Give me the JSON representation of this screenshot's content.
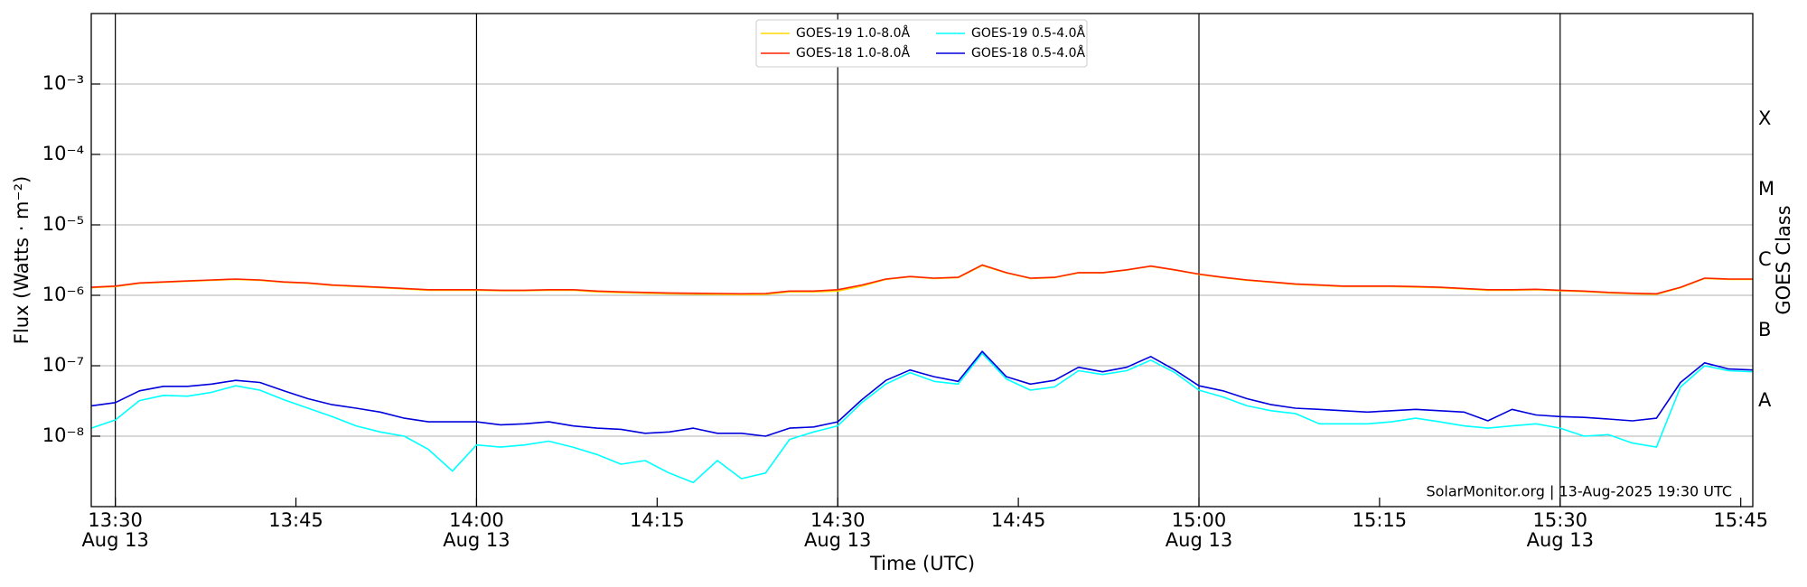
{
  "chart_data": {
    "type": "line",
    "xlabel": "Time (UTC)",
    "ylabel": "Flux (Watts · m⁻²)",
    "y2label": "GOES Class",
    "annotation": "SolarMonitor.org | 13-Aug-2025 19:30 UTC",
    "log_y": true,
    "grid": true,
    "legend": "upper center",
    "xlim": [
      "13:28",
      "15:46"
    ],
    "ylim": [
      1e-09,
      0.01
    ],
    "y2lim": [
      1e-09,
      0.01
    ],
    "xticks": [
      {
        "value": "13:30",
        "label": [
          "13:30",
          "Aug 13"
        ]
      },
      "13:45",
      {
        "value": "14:00",
        "label": [
          "14:00",
          "Aug 13"
        ]
      },
      "14:15",
      {
        "value": "14:30",
        "label": [
          "14:30",
          "Aug 13"
        ]
      },
      "14:45",
      {
        "value": "15:00",
        "label": [
          "15:00",
          "Aug 13"
        ]
      },
      "15:15",
      {
        "value": "15:30",
        "label": [
          "15:30",
          "Aug 13"
        ]
      },
      "15:45"
    ],
    "xgrid": [
      "13:30",
      "14:00",
      "14:30",
      "15:00",
      "15:30"
    ],
    "yticks": [
      {
        "value": 1e-08,
        "label": "10⁻⁸"
      },
      {
        "value": 1e-07,
        "label": "10⁻⁷"
      },
      {
        "value": 1e-06,
        "label": "10⁻⁶"
      },
      {
        "value": 1e-05,
        "label": "10⁻⁵"
      },
      {
        "value": 0.0001,
        "label": "10⁻⁴"
      },
      {
        "value": 0.001,
        "label": "10⁻³"
      }
    ],
    "y2ticks": [
      {
        "value": 3.16e-08,
        "label": "A"
      },
      {
        "value": 3.16e-07,
        "label": "B"
      },
      {
        "value": 3.16e-06,
        "label": "C"
      },
      {
        "value": 3.16e-05,
        "label": "M"
      },
      {
        "value": 0.000316,
        "label": "X"
      }
    ],
    "x": [
      "13:28",
      "13:30",
      "13:32",
      "13:34",
      "13:36",
      "13:38",
      "13:40",
      "13:42",
      "13:44",
      "13:46",
      "13:48",
      "13:50",
      "13:52",
      "13:54",
      "13:56",
      "13:58",
      "14:00",
      "14:02",
      "14:04",
      "14:06",
      "14:08",
      "14:10",
      "14:12",
      "14:14",
      "14:16",
      "14:18",
      "14:20",
      "14:22",
      "14:24",
      "14:26",
      "14:28",
      "14:30",
      "14:32",
      "14:34",
      "14:36",
      "14:38",
      "14:40",
      "14:42",
      "14:44",
      "14:46",
      "14:48",
      "14:50",
      "14:52",
      "14:54",
      "14:56",
      "14:58",
      "15:00",
      "15:02",
      "15:04",
      "15:06",
      "15:08",
      "15:10",
      "15:12",
      "15:14",
      "15:16",
      "15:18",
      "15:20",
      "15:22",
      "15:24",
      "15:26",
      "15:28",
      "15:30",
      "15:32",
      "15:34",
      "15:36",
      "15:38",
      "15:40",
      "15:42",
      "15:44",
      "15:46"
    ],
    "series": [
      {
        "name": "GOES-19 1.0-8.0Å",
        "color": "#ffd700",
        "values": [
          1.28e-06,
          1.33e-06,
          1.48e-06,
          1.53e-06,
          1.58e-06,
          1.63e-06,
          1.68e-06,
          1.63e-06,
          1.53e-06,
          1.48e-06,
          1.38e-06,
          1.33e-06,
          1.28e-06,
          1.23e-06,
          1.18e-06,
          1.18e-06,
          1.18e-06,
          1.16e-06,
          1.16e-06,
          1.18e-06,
          1.18e-06,
          1.12e-06,
          1.09e-06,
          1.07e-06,
          1.05e-06,
          1.04e-06,
          1.03e-06,
          1.02e-06,
          1.03e-06,
          1.12e-06,
          1.12e-06,
          1.15e-06,
          1.35e-06,
          1.68e-06,
          1.83e-06,
          1.73e-06,
          1.78e-06,
          2.65e-06,
          2.08e-06,
          1.73e-06,
          1.78e-06,
          2.08e-06,
          2.08e-06,
          2.28e-06,
          2.58e-06,
          2.28e-06,
          1.98e-06,
          1.78e-06,
          1.63e-06,
          1.53e-06,
          1.43e-06,
          1.38e-06,
          1.33e-06,
          1.33e-06,
          1.33e-06,
          1.31e-06,
          1.28e-06,
          1.23e-06,
          1.18e-06,
          1.18e-06,
          1.2e-06,
          1.16e-06,
          1.13e-06,
          1.08e-06,
          1.05e-06,
          1.03e-06,
          1.28e-06,
          1.73e-06,
          1.68e-06,
          1.68e-06
        ]
      },
      {
        "name": "GOES-18 1.0-8.0Å",
        "color": "#ff2200",
        "values": [
          1.3e-06,
          1.35e-06,
          1.5e-06,
          1.55e-06,
          1.6e-06,
          1.65e-06,
          1.7e-06,
          1.65e-06,
          1.55e-06,
          1.5e-06,
          1.4e-06,
          1.35e-06,
          1.3e-06,
          1.25e-06,
          1.2e-06,
          1.2e-06,
          1.2e-06,
          1.18e-06,
          1.18e-06,
          1.2e-06,
          1.2e-06,
          1.15e-06,
          1.12e-06,
          1.1e-06,
          1.08e-06,
          1.07e-06,
          1.06e-06,
          1.05e-06,
          1.06e-06,
          1.15e-06,
          1.15e-06,
          1.2e-06,
          1.4e-06,
          1.7e-06,
          1.85e-06,
          1.75e-06,
          1.8e-06,
          2.7e-06,
          2.1e-06,
          1.75e-06,
          1.8e-06,
          2.1e-06,
          2.1e-06,
          2.3e-06,
          2.6e-06,
          2.3e-06,
          2e-06,
          1.8e-06,
          1.65e-06,
          1.55e-06,
          1.45e-06,
          1.4e-06,
          1.35e-06,
          1.35e-06,
          1.35e-06,
          1.33e-06,
          1.3e-06,
          1.25e-06,
          1.2e-06,
          1.2e-06,
          1.22e-06,
          1.18e-06,
          1.15e-06,
          1.1e-06,
          1.07e-06,
          1.05e-06,
          1.3e-06,
          1.75e-06,
          1.7e-06,
          1.7e-06
        ]
      },
      {
        "name": "GOES-19 0.5-4.0Å",
        "color": "#00ffff",
        "values": [
          1.3e-08,
          1.7e-08,
          3.2e-08,
          3.8e-08,
          3.7e-08,
          4.2e-08,
          5.2e-08,
          4.5e-08,
          3.3e-08,
          2.5e-08,
          1.9e-08,
          1.4e-08,
          1.15e-08,
          1e-08,
          6.5e-09,
          3.2e-09,
          7.5e-09,
          7e-09,
          7.5e-09,
          8.5e-09,
          7e-09,
          5.5e-09,
          4e-09,
          4.5e-09,
          3e-09,
          2.2e-09,
          4.5e-09,
          2.5e-09,
          3e-09,
          9e-09,
          1.15e-08,
          1.4e-08,
          3e-08,
          5.5e-08,
          8e-08,
          6e-08,
          5.5e-08,
          1.5e-07,
          6.5e-08,
          4.5e-08,
          5e-08,
          8.5e-08,
          7.5e-08,
          8.5e-08,
          1.2e-07,
          8e-08,
          4.5e-08,
          3.6e-08,
          2.7e-08,
          2.3e-08,
          2.1e-08,
          1.5e-08,
          1.5e-08,
          1.5e-08,
          1.6e-08,
          1.8e-08,
          1.6e-08,
          1.4e-08,
          1.3e-08,
          1.4e-08,
          1.5e-08,
          1.3e-08,
          1e-08,
          1.05e-08,
          8e-09,
          7e-09,
          5e-08,
          1e-07,
          8.5e-08,
          8.2e-08
        ]
      },
      {
        "name": "GOES-18 0.5-4.0Å",
        "color": "#0000dd",
        "values": [
          2.7e-08,
          3e-08,
          4.4e-08,
          5.1e-08,
          5.1e-08,
          5.5e-08,
          6.2e-08,
          5.8e-08,
          4.4e-08,
          3.4e-08,
          2.8e-08,
          2.5e-08,
          2.2e-08,
          1.8e-08,
          1.6e-08,
          1.6e-08,
          1.6e-08,
          1.45e-08,
          1.5e-08,
          1.6e-08,
          1.4e-08,
          1.3e-08,
          1.25e-08,
          1.1e-08,
          1.15e-08,
          1.3e-08,
          1.1e-08,
          1.1e-08,
          1e-08,
          1.3e-08,
          1.35e-08,
          1.6e-08,
          3.3e-08,
          6.2e-08,
          8.7e-08,
          7e-08,
          6e-08,
          1.6e-07,
          7e-08,
          5.5e-08,
          6.2e-08,
          9.5e-08,
          8.2e-08,
          9.5e-08,
          1.35e-07,
          8.7e-08,
          5.2e-08,
          4.4e-08,
          3.4e-08,
          2.8e-08,
          2.5e-08,
          2.4e-08,
          2.3e-08,
          2.2e-08,
          2.3e-08,
          2.4e-08,
          2.3e-08,
          2.2e-08,
          1.65e-08,
          2.4e-08,
          2e-08,
          1.9e-08,
          1.85e-08,
          1.75e-08,
          1.65e-08,
          1.8e-08,
          5.8e-08,
          1.1e-07,
          9e-08,
          8.7e-08
        ]
      }
    ]
  }
}
